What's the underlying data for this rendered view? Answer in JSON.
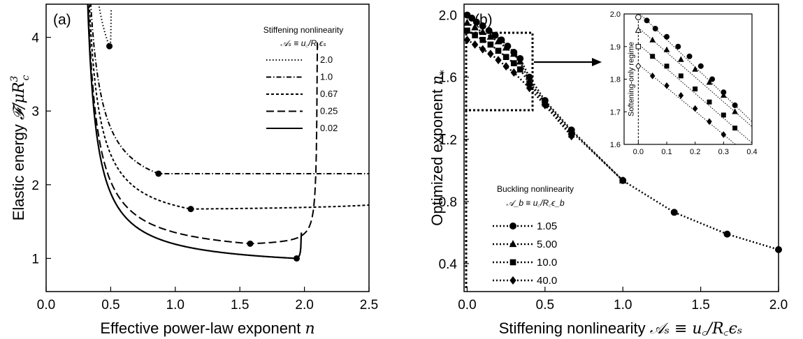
{
  "chart_data": [
    {
      "type": "line",
      "panel_label": "(a)",
      "xlabel_text": "Effective power-law exponent",
      "xlabel_sym": "n",
      "ylabel_text": "Elastic energy",
      "ylabel_sym": "𝓕/μR",
      "ylabel_sup": "3",
      "ylabel_sub": "c",
      "xlim": [
        0,
        2.5
      ],
      "ylim": [
        0.55,
        4.45
      ],
      "xticks": [
        "0.0",
        "0.5",
        "1.0",
        "1.5",
        "2.0",
        "2.5"
      ],
      "xtick_values": [
        0,
        0.5,
        1.0,
        1.5,
        2.0,
        2.5
      ],
      "yticks": [
        "1",
        "2",
        "3",
        "4"
      ],
      "ytick_values": [
        1,
        2,
        3,
        4
      ],
      "legend_title": "Stiffening nonlinearity",
      "legend_subtitle": "𝒜ₛ ≡ u꜀/R꜀ϵₛ",
      "legend_position": "top-right",
      "series": [
        {
          "name": "2.0",
          "style": "dotted",
          "A": 2.0,
          "minimum": {
            "x": 0.49,
            "y": 3.88
          }
        },
        {
          "name": "1.0",
          "style": "dashdot",
          "A": 1.0,
          "minimum": {
            "x": 0.87,
            "y": 2.15
          }
        },
        {
          "name": "0.67",
          "style": "shortdash",
          "A": 0.67,
          "minimum": {
            "x": 1.12,
            "y": 1.67
          }
        },
        {
          "name": "0.25",
          "style": "longdash",
          "A": 0.25,
          "minimum": {
            "x": 1.58,
            "y": 1.2
          }
        },
        {
          "name": "0.02",
          "style": "solid",
          "A": 0.02,
          "minimum": {
            "x": 1.94,
            "y": 1.0
          }
        }
      ]
    },
    {
      "type": "scatter",
      "panel_label": "(b)",
      "xlabel_text": "Stiffening nonlinearity",
      "xlabel_sym": "𝒜ₛ ≡ u꜀/R꜀ϵₛ",
      "ylabel_text": "Optimized exponent",
      "ylabel_sym": "n",
      "ylabel_sub": "*",
      "xlim": [
        -0.02,
        2.0
      ],
      "ylim": [
        0.22,
        2.07
      ],
      "xticks": [
        "0.0",
        "0.5",
        "1.0",
        "1.5",
        "2.0"
      ],
      "xtick_values": [
        0,
        0.5,
        1.0,
        1.5,
        2.0
      ],
      "yticks": [
        "0.4",
        "0.8",
        "1.2",
        "1.6",
        "2.0"
      ],
      "ytick_values": [
        0.4,
        0.8,
        1.2,
        1.6,
        2.0
      ],
      "legend_title": "Buckling nonlinearity",
      "legend_subtitle": "𝒜_b ≡ u꜀/R꜀ϵ_b",
      "legend_position": "bottom-left",
      "series": [
        {
          "name": "1.05",
          "marker": "circle",
          "x": [
            0,
            0.03,
            0.06,
            0.1,
            0.14,
            0.18,
            0.22,
            0.26,
            0.3,
            0.34,
            0.4,
            0.5,
            0.67,
            1.0,
            1.33,
            1.67,
            2.0
          ],
          "y": [
            2.0,
            1.98,
            1.955,
            1.93,
            1.9,
            1.87,
            1.84,
            1.8,
            1.76,
            1.72,
            1.6,
            1.45,
            1.26,
            0.935,
            0.73,
            0.59,
            0.49
          ]
        },
        {
          "name": "5.00",
          "marker": "triangle",
          "x": [
            0,
            0.05,
            0.1,
            0.15,
            0.2,
            0.25,
            0.3,
            0.34,
            0.4,
            0.5,
            0.67,
            1.0
          ],
          "y": [
            1.95,
            1.92,
            1.89,
            1.86,
            1.83,
            1.79,
            1.75,
            1.7,
            1.57,
            1.44,
            1.25,
            0.935
          ]
        },
        {
          "name": "10.0",
          "marker": "square",
          "x": [
            0,
            0.05,
            0.1,
            0.15,
            0.2,
            0.25,
            0.3,
            0.34,
            0.4,
            0.5,
            0.67
          ],
          "y": [
            1.9,
            1.87,
            1.84,
            1.81,
            1.77,
            1.73,
            1.69,
            1.65,
            1.56,
            1.43,
            1.23
          ]
        },
        {
          "name": "40.0",
          "marker": "diamond",
          "x": [
            0,
            0.05,
            0.1,
            0.15,
            0.2,
            0.25,
            0.3,
            0.4,
            0.5,
            0.67
          ],
          "y": [
            1.84,
            1.81,
            1.78,
            1.75,
            1.71,
            1.67,
            1.63,
            1.53,
            1.42,
            1.22
          ]
        }
      ],
      "inset": {
        "xlim": [
          -0.05,
          0.4
        ],
        "ylim": [
          1.6,
          2.0
        ],
        "xticks": [
          "0.0",
          "0.1",
          "0.2",
          "0.3",
          "0.4"
        ],
        "xtick_values": [
          0,
          0.1,
          0.2,
          0.3,
          0.4
        ],
        "yticks": [
          "1.6",
          "1.7",
          "1.8",
          "1.9",
          "2.0"
        ],
        "ytick_values": [
          1.6,
          1.7,
          1.8,
          1.9,
          2.0
        ],
        "vertical_label": "Softening-only regime",
        "open_markers_y": [
          1.99,
          1.95,
          1.9,
          1.84
        ]
      }
    }
  ]
}
